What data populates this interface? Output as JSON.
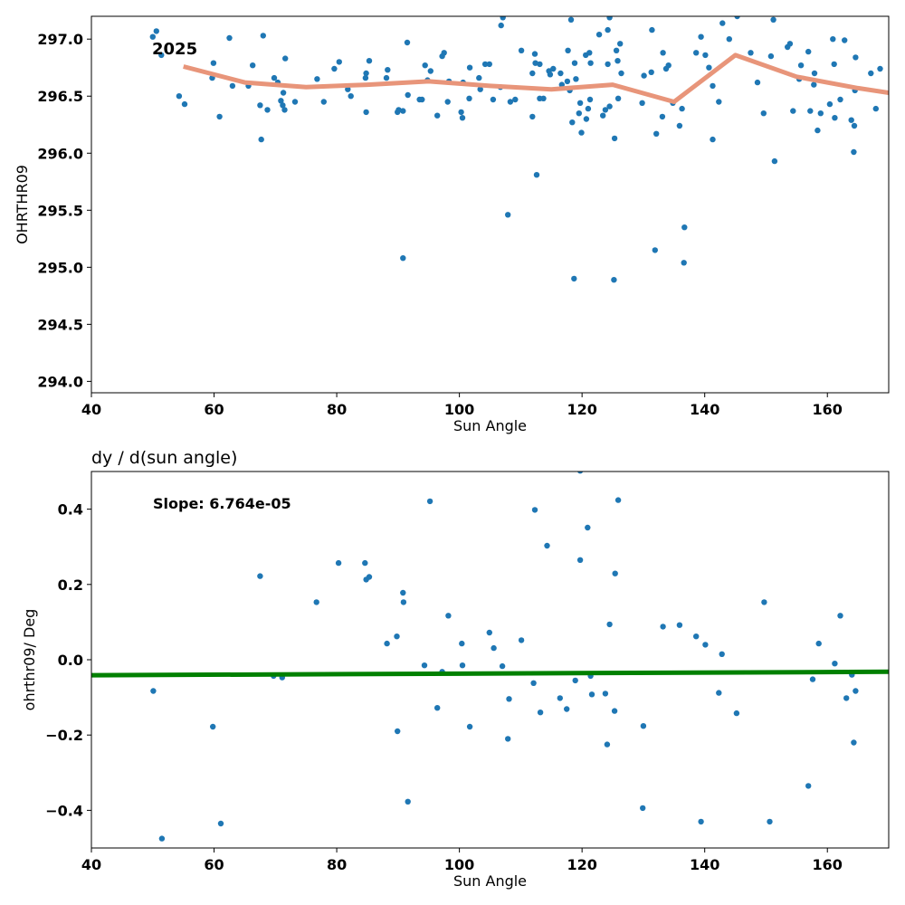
{
  "chart_data": [
    {
      "type": "scatter",
      "title": "",
      "xlabel": "Sun Angle",
      "ylabel": "OHRTHR09",
      "xlim": [
        40,
        170
      ],
      "ylim": [
        293.9,
        297.2
      ],
      "xticks": [
        40,
        60,
        80,
        100,
        120,
        140,
        160
      ],
      "yticks": [
        "294.0",
        "294.5",
        "295.0",
        "295.5",
        "296.0",
        "296.5",
        "297.0"
      ],
      "annotation": "2025",
      "grid": false,
      "point_color": "#1f77b4",
      "line_color": "#e8957a",
      "series": [
        {
          "kind": "scatter",
          "points": [
            [
              50.0,
              297.02
            ],
            [
              50.6,
              297.07
            ],
            [
              51.4,
              296.86
            ],
            [
              54.3,
              296.5
            ],
            [
              55.2,
              296.43
            ],
            [
              59.7,
              296.66
            ],
            [
              59.9,
              296.79
            ],
            [
              60.9,
              296.32
            ],
            [
              62.5,
              297.01
            ],
            [
              63.0,
              296.59
            ],
            [
              65.6,
              296.59
            ],
            [
              66.3,
              296.77
            ],
            [
              67.5,
              296.42
            ],
            [
              67.7,
              296.12
            ],
            [
              68.0,
              297.03
            ],
            [
              68.7,
              296.38
            ],
            [
              69.8,
              296.66
            ],
            [
              70.4,
              296.62
            ],
            [
              70.9,
              296.46
            ],
            [
              71.2,
              296.42
            ],
            [
              71.3,
              296.53
            ],
            [
              71.5,
              296.38
            ],
            [
              71.6,
              296.83
            ],
            [
              73.2,
              296.45
            ],
            [
              76.8,
              296.65
            ],
            [
              77.9,
              296.45
            ],
            [
              79.6,
              296.74
            ],
            [
              80.4,
              296.8
            ],
            [
              81.8,
              296.56
            ],
            [
              82.3,
              296.5
            ],
            [
              84.7,
              296.66
            ],
            [
              84.8,
              296.7
            ],
            [
              84.8,
              296.36
            ],
            [
              85.3,
              296.81
            ],
            [
              88.1,
              296.66
            ],
            [
              88.3,
              296.73
            ],
            [
              89.9,
              296.36
            ],
            [
              90.1,
              296.38
            ],
            [
              90.8,
              295.08
            ],
            [
              90.8,
              296.37
            ],
            [
              91.5,
              296.97
            ],
            [
              91.6,
              296.51
            ],
            [
              93.5,
              296.47
            ],
            [
              93.9,
              296.47
            ],
            [
              94.4,
              296.77
            ],
            [
              94.8,
              296.64
            ],
            [
              95.3,
              296.72
            ],
            [
              96.4,
              296.33
            ],
            [
              97.2,
              296.85
            ],
            [
              97.5,
              296.88
            ],
            [
              98.1,
              296.45
            ],
            [
              98.3,
              296.63
            ],
            [
              100.3,
              296.36
            ],
            [
              100.5,
              296.31
            ],
            [
              100.6,
              296.62
            ],
            [
              101.6,
              296.48
            ],
            [
              101.7,
              296.75
            ],
            [
              103.2,
              296.66
            ],
            [
              103.4,
              296.56
            ],
            [
              104.2,
              296.78
            ],
            [
              104.9,
              296.78
            ],
            [
              105.5,
              296.47
            ],
            [
              106.7,
              296.58
            ],
            [
              106.8,
              297.12
            ],
            [
              107.1,
              297.19
            ],
            [
              107.9,
              295.46
            ],
            [
              108.3,
              296.45
            ],
            [
              109.1,
              296.47
            ],
            [
              110.1,
              296.9
            ],
            [
              111.9,
              296.32
            ],
            [
              111.9,
              296.7
            ],
            [
              112.3,
              296.87
            ],
            [
              112.4,
              296.79
            ],
            [
              112.6,
              295.81
            ],
            [
              113.1,
              296.78
            ],
            [
              113.1,
              296.48
            ],
            [
              113.7,
              296.48
            ],
            [
              114.6,
              296.72
            ],
            [
              114.8,
              296.69
            ],
            [
              115.3,
              296.74
            ],
            [
              116.5,
              296.7
            ],
            [
              116.7,
              296.6
            ],
            [
              117.6,
              296.63
            ],
            [
              117.7,
              296.9
            ],
            [
              118.0,
              296.55
            ],
            [
              118.2,
              297.17
            ],
            [
              118.4,
              296.27
            ],
            [
              118.7,
              294.9
            ],
            [
              118.8,
              296.79
            ],
            [
              119.0,
              296.65
            ],
            [
              119.5,
              296.35
            ],
            [
              119.7,
              296.44
            ],
            [
              119.9,
              296.18
            ],
            [
              120.6,
              296.86
            ],
            [
              120.7,
              296.3
            ],
            [
              121.2,
              296.88
            ],
            [
              121.3,
              296.47
            ],
            [
              121.4,
              296.79
            ],
            [
              121.0,
              296.39
            ],
            [
              122.8,
              297.04
            ],
            [
              123.4,
              296.33
            ],
            [
              123.8,
              296.38
            ],
            [
              124.2,
              296.78
            ],
            [
              124.2,
              297.08
            ],
            [
              124.5,
              296.41
            ],
            [
              124.5,
              297.19
            ],
            [
              125.2,
              294.89
            ],
            [
              125.3,
              296.13
            ],
            [
              125.6,
              296.9
            ],
            [
              125.8,
              296.81
            ],
            [
              125.9,
              296.48
            ],
            [
              126.2,
              296.96
            ],
            [
              126.4,
              296.7
            ],
            [
              129.8,
              296.44
            ],
            [
              130.1,
              296.68
            ],
            [
              131.3,
              296.71
            ],
            [
              131.4,
              297.08
            ],
            [
              131.9,
              295.15
            ],
            [
              132.1,
              296.17
            ],
            [
              133.1,
              296.32
            ],
            [
              133.2,
              296.88
            ],
            [
              133.7,
              296.74
            ],
            [
              134.1,
              296.77
            ],
            [
              134.8,
              296.44
            ],
            [
              135.9,
              296.24
            ],
            [
              136.3,
              296.39
            ],
            [
              136.6,
              295.04
            ],
            [
              136.7,
              295.35
            ],
            [
              138.6,
              296.88
            ],
            [
              139.4,
              297.02
            ],
            [
              140.1,
              296.86
            ],
            [
              140.7,
              296.75
            ],
            [
              141.3,
              296.59
            ],
            [
              141.3,
              296.12
            ],
            [
              142.3,
              296.45
            ],
            [
              142.9,
              297.14
            ],
            [
              144.0,
              297.0
            ],
            [
              145.3,
              297.2
            ],
            [
              147.5,
              296.88
            ],
            [
              148.6,
              296.62
            ],
            [
              149.6,
              296.35
            ],
            [
              150.8,
              296.85
            ],
            [
              151.2,
              297.17
            ],
            [
              151.4,
              295.93
            ],
            [
              153.5,
              296.93
            ],
            [
              153.9,
              296.96
            ],
            [
              154.4,
              296.37
            ],
            [
              155.4,
              296.65
            ],
            [
              155.7,
              296.77
            ],
            [
              156.9,
              296.89
            ],
            [
              157.2,
              296.37
            ],
            [
              157.8,
              296.6
            ],
            [
              157.9,
              296.7
            ],
            [
              158.4,
              296.2
            ],
            [
              158.9,
              296.35
            ],
            [
              160.4,
              296.43
            ],
            [
              160.9,
              297.0
            ],
            [
              161.1,
              296.78
            ],
            [
              161.2,
              296.31
            ],
            [
              162.1,
              296.47
            ],
            [
              162.8,
              296.99
            ],
            [
              163.9,
              296.29
            ],
            [
              164.3,
              296.01
            ],
            [
              164.4,
              296.24
            ],
            [
              164.5,
              296.55
            ],
            [
              164.6,
              296.84
            ],
            [
              167.1,
              296.7
            ],
            [
              167.9,
              296.39
            ],
            [
              168.6,
              296.74
            ]
          ]
        },
        {
          "kind": "line",
          "points": [
            [
              55,
              296.76
            ],
            [
              65,
              296.62
            ],
            [
              75,
              296.58
            ],
            [
              85,
              296.6
            ],
            [
              95,
              296.63
            ],
            [
              105,
              296.59
            ],
            [
              115,
              296.56
            ],
            [
              125,
              296.6
            ],
            [
              135,
              296.45
            ],
            [
              145,
              296.86
            ],
            [
              155,
              296.67
            ],
            [
              165,
              296.57
            ],
            [
              170,
              296.53
            ]
          ]
        }
      ]
    },
    {
      "type": "scatter",
      "title": "dy / d(sun angle)",
      "xlabel": "Sun Angle",
      "ylabel": "ohrthr09/ Deg",
      "xlim": [
        40,
        170
      ],
      "ylim": [
        -0.5,
        0.5
      ],
      "xticks": [
        40,
        60,
        80,
        100,
        120,
        140,
        160
      ],
      "yticks": [
        "−0.4",
        "−0.2",
        "0.0",
        "0.2",
        "0.4"
      ],
      "annotation": "Slope: 6.764e-05",
      "grid": false,
      "point_color": "#1f77b4",
      "line_color": "#008000",
      "series": [
        {
          "kind": "scatter",
          "points": [
            [
              50.1,
              -0.083
            ],
            [
              51.5,
              -0.475
            ],
            [
              59.8,
              -0.178
            ],
            [
              61.1,
              -0.435
            ],
            [
              67.5,
              0.222
            ],
            [
              69.7,
              -0.043
            ],
            [
              71.1,
              -0.047
            ],
            [
              76.7,
              0.153
            ],
            [
              80.3,
              0.257
            ],
            [
              84.6,
              0.257
            ],
            [
              84.8,
              0.213
            ],
            [
              85.3,
              0.22
            ],
            [
              88.2,
              0.043
            ],
            [
              89.8,
              0.062
            ],
            [
              89.9,
              -0.19
            ],
            [
              90.8,
              0.178
            ],
            [
              90.9,
              0.153
            ],
            [
              91.6,
              -0.377
            ],
            [
              94.3,
              -0.015
            ],
            [
              95.2,
              0.421
            ],
            [
              96.4,
              -0.128
            ],
            [
              97.2,
              -0.032
            ],
            [
              98.2,
              0.117
            ],
            [
              100.4,
              0.043
            ],
            [
              100.5,
              -0.015
            ],
            [
              101.7,
              -0.178
            ],
            [
              104.9,
              0.072
            ],
            [
              105.6,
              0.031
            ],
            [
              107.0,
              -0.017
            ],
            [
              108.1,
              -0.104
            ],
            [
              107.9,
              -0.21
            ],
            [
              110.1,
              0.052
            ],
            [
              112.1,
              -0.062
            ],
            [
              112.3,
              0.398
            ],
            [
              113.2,
              -0.14
            ],
            [
              114.3,
              0.303
            ],
            [
              116.4,
              -0.102
            ],
            [
              117.5,
              -0.131
            ],
            [
              118.9,
              -0.055
            ],
            [
              119.7,
              0.265
            ],
            [
              119.7,
              0.502
            ],
            [
              120.9,
              0.351
            ],
            [
              121.4,
              -0.043
            ],
            [
              121.6,
              -0.092
            ],
            [
              123.8,
              -0.09
            ],
            [
              124.1,
              -0.225
            ],
            [
              124.5,
              0.094
            ],
            [
              125.3,
              -0.136
            ],
            [
              125.4,
              0.229
            ],
            [
              125.9,
              0.424
            ],
            [
              129.9,
              -0.394
            ],
            [
              130.0,
              -0.176
            ],
            [
              133.2,
              0.088
            ],
            [
              135.9,
              0.092
            ],
            [
              138.6,
              0.062
            ],
            [
              139.4,
              -0.43
            ],
            [
              140.1,
              0.04
            ],
            [
              142.3,
              -0.088
            ],
            [
              142.8,
              0.015
            ],
            [
              145.2,
              -0.142
            ],
            [
              149.7,
              0.153
            ],
            [
              150.6,
              -0.43
            ],
            [
              156.9,
              -0.335
            ],
            [
              157.6,
              -0.052
            ],
            [
              158.6,
              0.043
            ],
            [
              161.2,
              -0.01
            ],
            [
              162.1,
              0.117
            ],
            [
              163.1,
              -0.102
            ],
            [
              164.0,
              -0.04
            ],
            [
              164.3,
              -0.22
            ],
            [
              164.6,
              -0.083
            ]
          ]
        },
        {
          "kind": "line",
          "points": [
            [
              40,
              -0.041
            ],
            [
              170,
              -0.032
            ]
          ]
        }
      ]
    }
  ]
}
